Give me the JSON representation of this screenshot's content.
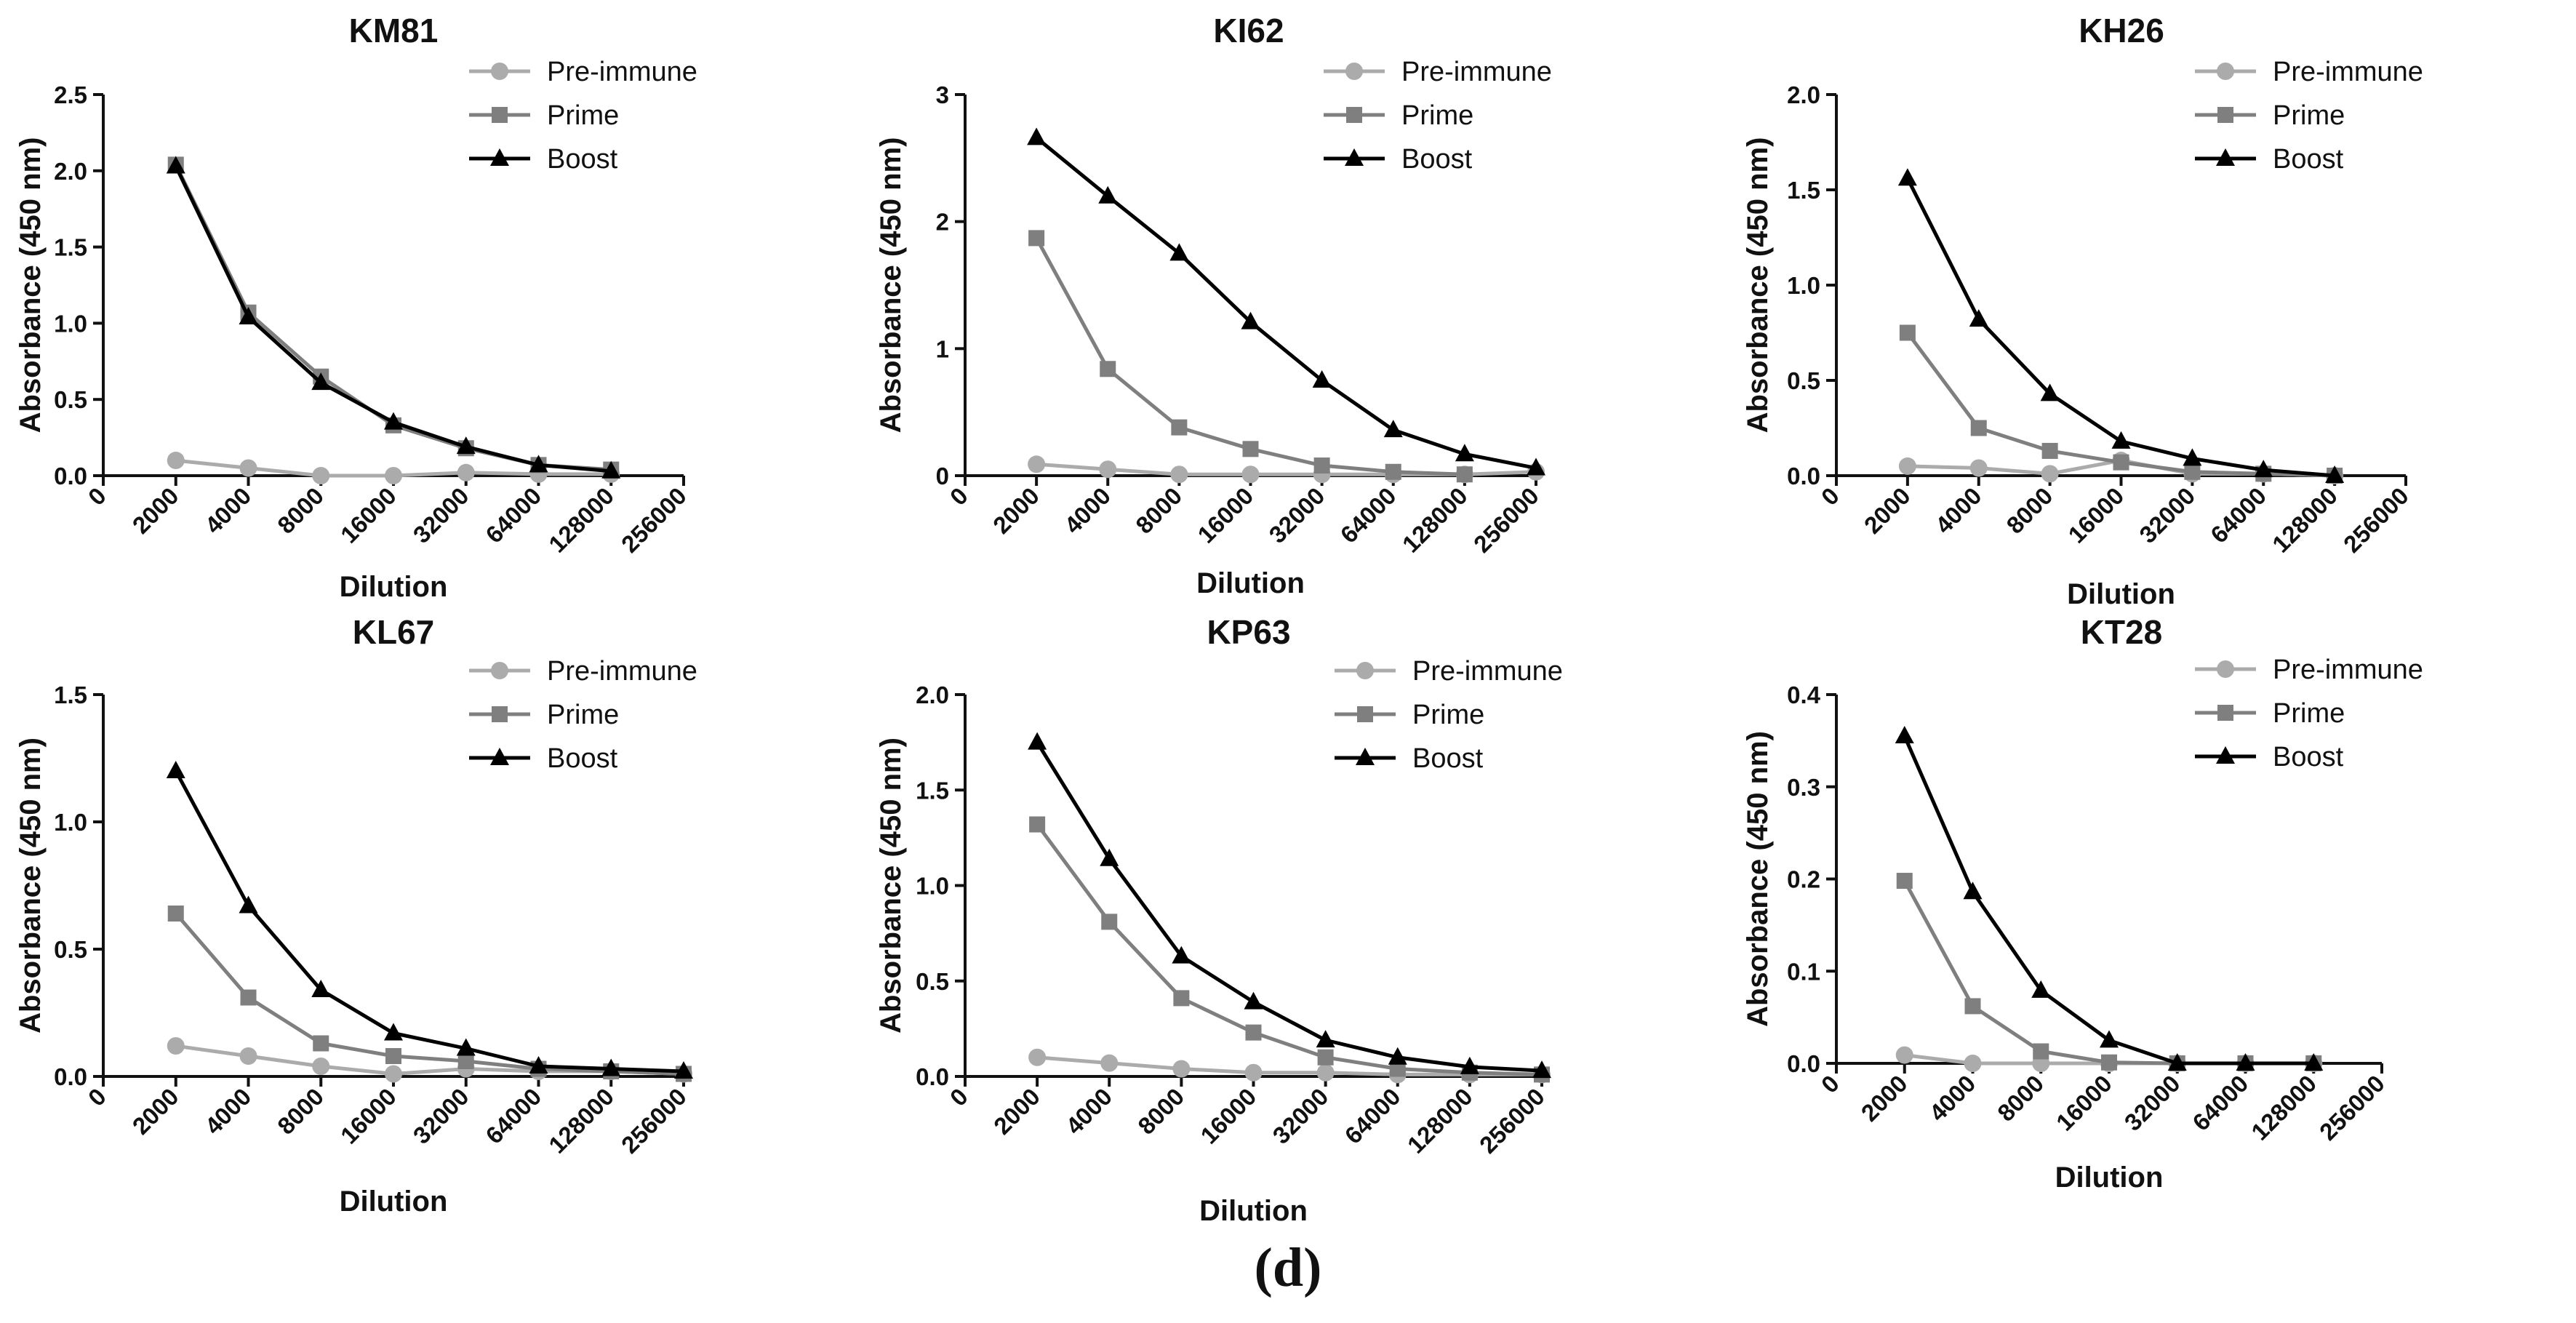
{
  "figure_label": "(d)",
  "styles": {
    "Pre-immune": {
      "color": "#ababab",
      "marker": "circle"
    },
    "Prime": {
      "color": "#7f7f7f",
      "marker": "square"
    },
    "Boost": {
      "color": "#000000",
      "marker": "triangle"
    }
  },
  "chart_data": [
    {
      "type": "line",
      "title": "KM81",
      "xlabel": "Dilution",
      "ylabel": "Absorbance (450 nm)",
      "categories": [
        "0",
        "2000",
        "4000",
        "8000",
        "16000",
        "32000",
        "64000",
        "128000",
        "256000"
      ],
      "ylim": [
        0,
        2.5
      ],
      "yticks": [
        "0.0",
        "0.5",
        "1.0",
        "1.5",
        "2.0",
        "2.5"
      ],
      "ytick_values": [
        0,
        0.5,
        1,
        1.5,
        2,
        2.5
      ],
      "legend": "top-right",
      "series": [
        {
          "name": "Pre-immune",
          "values": [
            null,
            0.1,
            0.05,
            0.0,
            0.0,
            0.02,
            0.01,
            0.01,
            null
          ]
        },
        {
          "name": "Prime",
          "values": [
            null,
            2.04,
            1.07,
            0.65,
            0.33,
            0.18,
            0.07,
            0.04,
            null
          ]
        },
        {
          "name": "Boost",
          "values": [
            null,
            2.03,
            1.04,
            0.61,
            0.35,
            0.19,
            0.07,
            0.03,
            null
          ]
        }
      ]
    },
    {
      "type": "line",
      "title": "KI62",
      "xlabel": "Dilution",
      "ylabel": "Absorbance (450 nm)",
      "categories": [
        "0",
        "2000",
        "4000",
        "8000",
        "16000",
        "32000",
        "64000",
        "128000",
        "256000"
      ],
      "ylim": [
        0,
        3
      ],
      "yticks": [
        "0",
        "1",
        "2",
        "3"
      ],
      "ytick_values": [
        0,
        1,
        2,
        3
      ],
      "legend": "top-right",
      "series": [
        {
          "name": "Pre-immune",
          "values": [
            null,
            0.09,
            0.05,
            0.01,
            0.01,
            0.01,
            0.01,
            0.01,
            0.03
          ]
        },
        {
          "name": "Prime",
          "values": [
            null,
            1.87,
            0.84,
            0.38,
            0.21,
            0.08,
            0.03,
            0.01,
            null
          ]
        },
        {
          "name": "Boost",
          "values": [
            null,
            2.66,
            2.2,
            1.75,
            1.21,
            0.75,
            0.36,
            0.17,
            0.06
          ]
        }
      ]
    },
    {
      "type": "line",
      "title": "KH26",
      "xlabel": "Dilution",
      "ylabel": "Absorbance (450 nm)",
      "categories": [
        "0",
        "2000",
        "4000",
        "8000",
        "16000",
        "32000",
        "64000",
        "128000",
        "256000"
      ],
      "ylim": [
        0,
        2.0
      ],
      "yticks": [
        "0.0",
        "0.5",
        "1.0",
        "1.5",
        "2.0"
      ],
      "ytick_values": [
        0,
        0.5,
        1,
        1.5,
        2
      ],
      "legend": "top-right",
      "series": [
        {
          "name": "Pre-immune",
          "values": [
            null,
            0.05,
            0.04,
            0.01,
            0.08,
            0.01,
            0.01,
            0.0,
            null
          ]
        },
        {
          "name": "Prime",
          "values": [
            null,
            0.75,
            0.25,
            0.13,
            0.07,
            0.02,
            0.01,
            0.0,
            null
          ]
        },
        {
          "name": "Boost",
          "values": [
            null,
            1.56,
            0.82,
            0.43,
            0.18,
            0.09,
            0.03,
            0.0,
            null
          ]
        }
      ]
    },
    {
      "type": "line",
      "title": "KL67",
      "xlabel": "Dilution",
      "ylabel": "Absorbance (450 nm)",
      "categories": [
        "0",
        "2000",
        "4000",
        "8000",
        "16000",
        "32000",
        "64000",
        "128000",
        "256000"
      ],
      "ylim": [
        0,
        1.5
      ],
      "yticks": [
        "0.0",
        "0.5",
        "1.0",
        "1.5"
      ],
      "ytick_values": [
        0,
        0.5,
        1,
        1.5
      ],
      "legend": "top-right",
      "series": [
        {
          "name": "Pre-immune",
          "values": [
            null,
            0.12,
            0.08,
            0.04,
            0.01,
            0.03,
            0.02,
            0.02,
            0.01
          ]
        },
        {
          "name": "Prime",
          "values": [
            null,
            0.64,
            0.31,
            0.13,
            0.08,
            0.06,
            0.03,
            0.02,
            0.01
          ]
        },
        {
          "name": "Boost",
          "values": [
            null,
            1.2,
            0.67,
            0.34,
            0.17,
            0.11,
            0.04,
            0.03,
            0.02
          ]
        }
      ]
    },
    {
      "type": "line",
      "title": "KP63",
      "xlabel": "Dilution",
      "ylabel": "Absorbance (450 nm)",
      "categories": [
        "0",
        "2000",
        "4000",
        "8000",
        "16000",
        "32000",
        "64000",
        "128000",
        "256000"
      ],
      "ylim": [
        0,
        2.0
      ],
      "yticks": [
        "0.0",
        "0.5",
        "1.0",
        "1.5",
        "2.0"
      ],
      "ytick_values": [
        0,
        0.5,
        1,
        1.5,
        2
      ],
      "legend": "top-right",
      "series": [
        {
          "name": "Pre-immune",
          "values": [
            null,
            0.1,
            0.07,
            0.04,
            0.02,
            0.02,
            0.01,
            0.01,
            0.01
          ]
        },
        {
          "name": "Prime",
          "values": [
            null,
            1.32,
            0.81,
            0.41,
            0.23,
            0.1,
            0.04,
            0.02,
            0.01
          ]
        },
        {
          "name": "Boost",
          "values": [
            null,
            1.75,
            1.14,
            0.63,
            0.39,
            0.19,
            0.1,
            0.05,
            0.03
          ]
        }
      ]
    },
    {
      "type": "line",
      "title": "KT28",
      "xlabel": "Dilution",
      "ylabel": "Absorbance (450 nm)",
      "categories": [
        "0",
        "2000",
        "4000",
        "8000",
        "16000",
        "32000",
        "64000",
        "128000",
        "256000"
      ],
      "ylim": [
        0,
        0.4
      ],
      "yticks": [
        "0.0",
        "0.1",
        "0.2",
        "0.3",
        "0.4"
      ],
      "ytick_values": [
        0,
        0.1,
        0.2,
        0.3,
        0.4
      ],
      "legend": "top-right",
      "series": [
        {
          "name": "Pre-immune",
          "values": [
            null,
            0.009,
            0.0,
            0.0,
            0.0,
            0.0,
            0.0,
            0.0,
            null
          ]
        },
        {
          "name": "Prime",
          "values": [
            null,
            0.198,
            0.062,
            0.013,
            0.001,
            0.0,
            0.0,
            0.0,
            null
          ]
        },
        {
          "name": "Boost",
          "values": [
            null,
            0.355,
            0.186,
            0.079,
            0.025,
            0.0,
            0.0,
            0.0,
            null
          ]
        }
      ]
    }
  ]
}
